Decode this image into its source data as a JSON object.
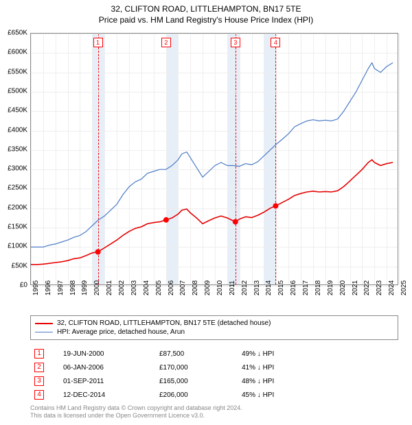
{
  "title": {
    "line1": "32, CLIFTON ROAD, LITTLEHAMPTON, BN17 5TE",
    "line2": "Price paid vs. HM Land Registry's House Price Index (HPI)"
  },
  "chart": {
    "type": "line",
    "x_range": [
      1995,
      2025
    ],
    "y_range": [
      0,
      650000
    ],
    "y_ticks": [
      0,
      50000,
      100000,
      150000,
      200000,
      250000,
      300000,
      350000,
      400000,
      450000,
      500000,
      550000,
      600000,
      650000
    ],
    "y_tick_labels": [
      "£0",
      "£50K",
      "£100K",
      "£150K",
      "£200K",
      "£250K",
      "£300K",
      "£350K",
      "£400K",
      "£450K",
      "£500K",
      "£550K",
      "£600K",
      "£650K"
    ],
    "x_ticks": [
      1995,
      1996,
      1997,
      1998,
      1999,
      2000,
      2001,
      2002,
      2003,
      2004,
      2005,
      2006,
      2007,
      2008,
      2009,
      2010,
      2011,
      2012,
      2013,
      2014,
      2015,
      2016,
      2017,
      2018,
      2019,
      2020,
      2021,
      2022,
      2023,
      2024,
      2025
    ],
    "background_color": "#ffffff",
    "grid_color": "#eeeeee",
    "axis_color": "#888888",
    "sale_band_color": "#e6eef7",
    "sale_dash_color": "#ff0000",
    "series": [
      {
        "name": "hpi",
        "label": "HPI: Average price, detached house, Arun",
        "color": "#4a7ac7",
        "width": 1.2,
        "data": [
          [
            1995.0,
            100000
          ],
          [
            1995.5,
            100000
          ],
          [
            1996.0,
            100000
          ],
          [
            1996.5,
            105000
          ],
          [
            1997.0,
            108000
          ],
          [
            1997.5,
            113000
          ],
          [
            1998.0,
            118000
          ],
          [
            1998.5,
            125000
          ],
          [
            1999.0,
            130000
          ],
          [
            1999.5,
            140000
          ],
          [
            2000.0,
            155000
          ],
          [
            2000.5,
            170000
          ],
          [
            2001.0,
            180000
          ],
          [
            2001.5,
            195000
          ],
          [
            2002.0,
            210000
          ],
          [
            2002.5,
            235000
          ],
          [
            2003.0,
            255000
          ],
          [
            2003.5,
            268000
          ],
          [
            2004.0,
            275000
          ],
          [
            2004.5,
            290000
          ],
          [
            2005.0,
            295000
          ],
          [
            2005.5,
            300000
          ],
          [
            2006.0,
            300000
          ],
          [
            2006.5,
            310000
          ],
          [
            2007.0,
            325000
          ],
          [
            2007.3,
            340000
          ],
          [
            2007.7,
            345000
          ],
          [
            2008.0,
            330000
          ],
          [
            2008.5,
            305000
          ],
          [
            2009.0,
            280000
          ],
          [
            2009.5,
            295000
          ],
          [
            2010.0,
            310000
          ],
          [
            2010.5,
            318000
          ],
          [
            2011.0,
            310000
          ],
          [
            2011.5,
            310000
          ],
          [
            2012.0,
            308000
          ],
          [
            2012.5,
            315000
          ],
          [
            2013.0,
            312000
          ],
          [
            2013.5,
            320000
          ],
          [
            2014.0,
            335000
          ],
          [
            2014.5,
            350000
          ],
          [
            2015.0,
            365000
          ],
          [
            2015.5,
            378000
          ],
          [
            2016.0,
            392000
          ],
          [
            2016.5,
            410000
          ],
          [
            2017.0,
            418000
          ],
          [
            2017.5,
            425000
          ],
          [
            2018.0,
            428000
          ],
          [
            2018.5,
            425000
          ],
          [
            2019.0,
            427000
          ],
          [
            2019.5,
            425000
          ],
          [
            2020.0,
            430000
          ],
          [
            2020.5,
            450000
          ],
          [
            2021.0,
            475000
          ],
          [
            2021.5,
            500000
          ],
          [
            2022.0,
            530000
          ],
          [
            2022.5,
            560000
          ],
          [
            2022.8,
            575000
          ],
          [
            2023.0,
            560000
          ],
          [
            2023.5,
            550000
          ],
          [
            2024.0,
            565000
          ],
          [
            2024.5,
            575000
          ]
        ]
      },
      {
        "name": "property",
        "label": "32, CLIFTON ROAD, LITTLEHAMPTON, BN17 5TE (detached house)",
        "color": "#e60000",
        "width": 1.6,
        "data": [
          [
            1995.0,
            55000
          ],
          [
            1995.5,
            55000
          ],
          [
            1996.0,
            56000
          ],
          [
            1996.5,
            58000
          ],
          [
            1997.0,
            60000
          ],
          [
            1997.5,
            62000
          ],
          [
            1998.0,
            65000
          ],
          [
            1998.5,
            70000
          ],
          [
            1999.0,
            72000
          ],
          [
            1999.5,
            78000
          ],
          [
            2000.0,
            85000
          ],
          [
            2000.46,
            87500
          ],
          [
            2001.0,
            98000
          ],
          [
            2001.5,
            108000
          ],
          [
            2002.0,
            118000
          ],
          [
            2002.5,
            130000
          ],
          [
            2003.0,
            140000
          ],
          [
            2003.5,
            148000
          ],
          [
            2004.0,
            152000
          ],
          [
            2004.5,
            160000
          ],
          [
            2005.0,
            163000
          ],
          [
            2005.5,
            165000
          ],
          [
            2006.02,
            170000
          ],
          [
            2006.5,
            175000
          ],
          [
            2007.0,
            185000
          ],
          [
            2007.3,
            195000
          ],
          [
            2007.7,
            198000
          ],
          [
            2008.0,
            188000
          ],
          [
            2008.5,
            175000
          ],
          [
            2009.0,
            160000
          ],
          [
            2009.5,
            168000
          ],
          [
            2010.0,
            175000
          ],
          [
            2010.5,
            180000
          ],
          [
            2011.0,
            175000
          ],
          [
            2011.67,
            165000
          ],
          [
            2012.0,
            172000
          ],
          [
            2012.5,
            178000
          ],
          [
            2013.0,
            176000
          ],
          [
            2013.5,
            182000
          ],
          [
            2014.0,
            190000
          ],
          [
            2014.5,
            200000
          ],
          [
            2014.95,
            206000
          ],
          [
            2015.5,
            215000
          ],
          [
            2016.0,
            223000
          ],
          [
            2016.5,
            233000
          ],
          [
            2017.0,
            238000
          ],
          [
            2017.5,
            242000
          ],
          [
            2018.0,
            244000
          ],
          [
            2018.5,
            242000
          ],
          [
            2019.0,
            243000
          ],
          [
            2019.5,
            242000
          ],
          [
            2020.0,
            245000
          ],
          [
            2020.5,
            256000
          ],
          [
            2021.0,
            270000
          ],
          [
            2021.5,
            285000
          ],
          [
            2022.0,
            300000
          ],
          [
            2022.5,
            318000
          ],
          [
            2022.8,
            325000
          ],
          [
            2023.0,
            318000
          ],
          [
            2023.5,
            310000
          ],
          [
            2024.0,
            315000
          ],
          [
            2024.5,
            318000
          ]
        ]
      }
    ],
    "sales": [
      {
        "idx": "1",
        "year": 2000.46,
        "price": 87500,
        "date": "19-JUN-2000",
        "price_label": "£87,500",
        "diff": "49% ↓ HPI"
      },
      {
        "idx": "2",
        "year": 2006.02,
        "price": 170000,
        "date": "06-JAN-2006",
        "price_label": "£170,000",
        "diff": "41% ↓ HPI"
      },
      {
        "idx": "3",
        "year": 2011.67,
        "price": 165000,
        "date": "01-SEP-2011",
        "price_label": "£165,000",
        "diff": "48% ↓ HPI"
      },
      {
        "idx": "4",
        "year": 2014.95,
        "price": 206000,
        "date": "12-DEC-2014",
        "price_label": "£206,000",
        "diff": "45% ↓ HPI"
      }
    ]
  },
  "footer": {
    "line1": "Contains HM Land Registry data © Crown copyright and database right 2024.",
    "line2": "This data is licensed under the Open Government Licence v3.0."
  }
}
